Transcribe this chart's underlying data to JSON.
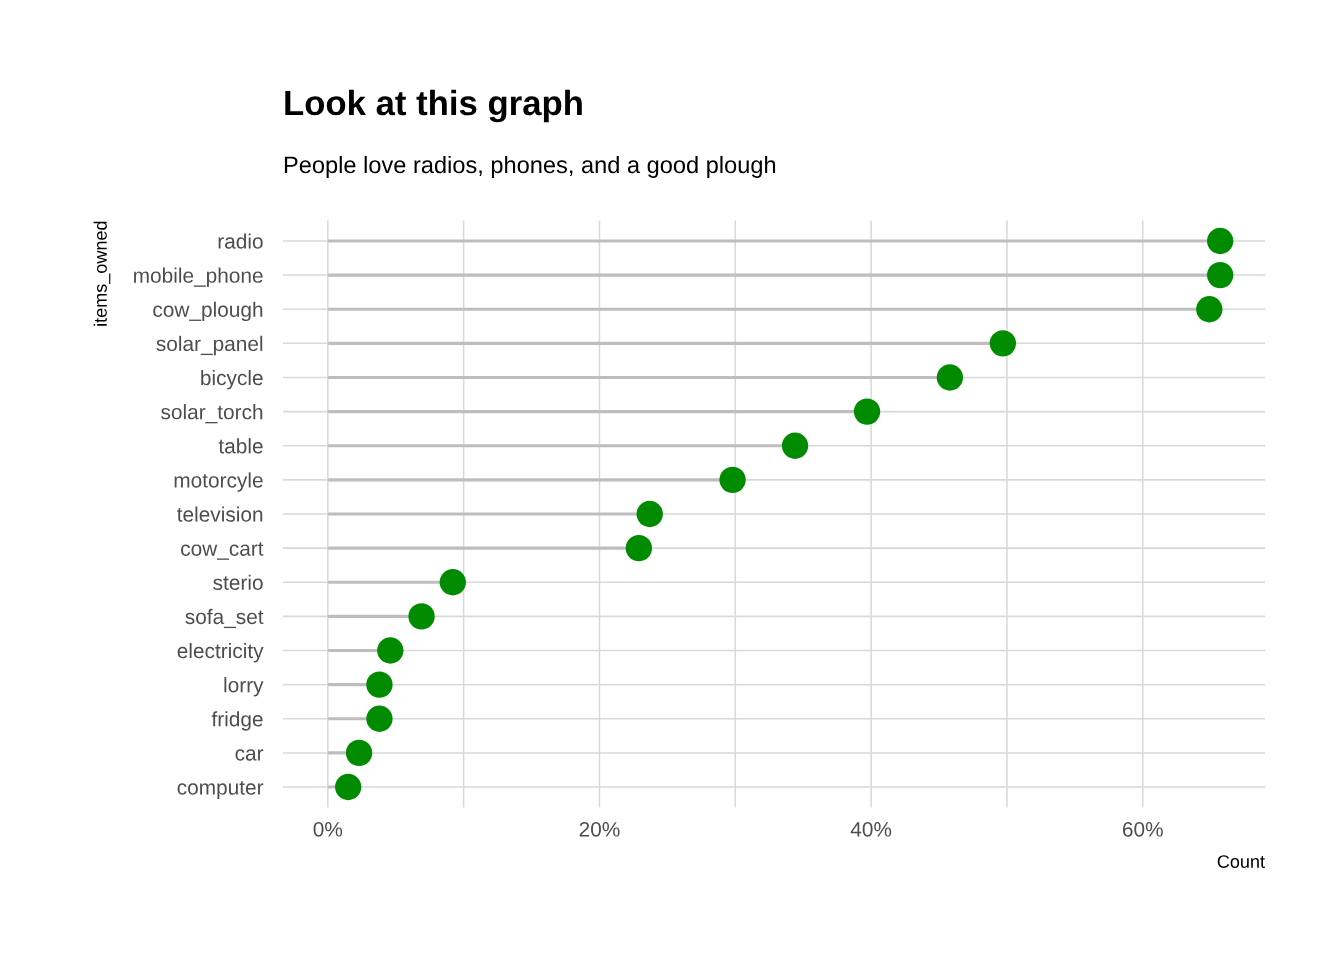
{
  "chart_data": {
    "type": "lollipop",
    "title": "Look at this graph",
    "subtitle": "People love radios, phones, and a good plough",
    "xlabel": "Count",
    "ylabel": "items_owned",
    "orientation": "horizontal",
    "categories": [
      "radio",
      "mobile_phone",
      "cow_plough",
      "solar_panel",
      "bicycle",
      "solar_torch",
      "table",
      "motorcyle",
      "television",
      "cow_cart",
      "sterio",
      "sofa_set",
      "electricity",
      "lorry",
      "fridge",
      "car",
      "computer"
    ],
    "series": [
      {
        "color": "#008b00",
        "values": [
          65.7,
          65.7,
          64.9,
          49.7,
          45.8,
          39.7,
          34.4,
          29.8,
          23.7,
          22.9,
          9.2,
          6.9,
          4.6,
          3.8,
          3.8,
          2.3,
          1.5
        ]
      }
    ],
    "xlim": [
      -3.3,
      69.0
    ],
    "xticks": [
      {
        "value": 0,
        "label": "0%"
      },
      {
        "value": 10,
        "label": null
      },
      {
        "value": 20,
        "label": "20%"
      },
      {
        "value": 30,
        "label": null
      },
      {
        "value": 40,
        "label": "40%"
      },
      {
        "value": 50,
        "label": null
      },
      {
        "value": 60,
        "label": "60%"
      }
    ],
    "grid": true,
    "marker": "circle"
  }
}
